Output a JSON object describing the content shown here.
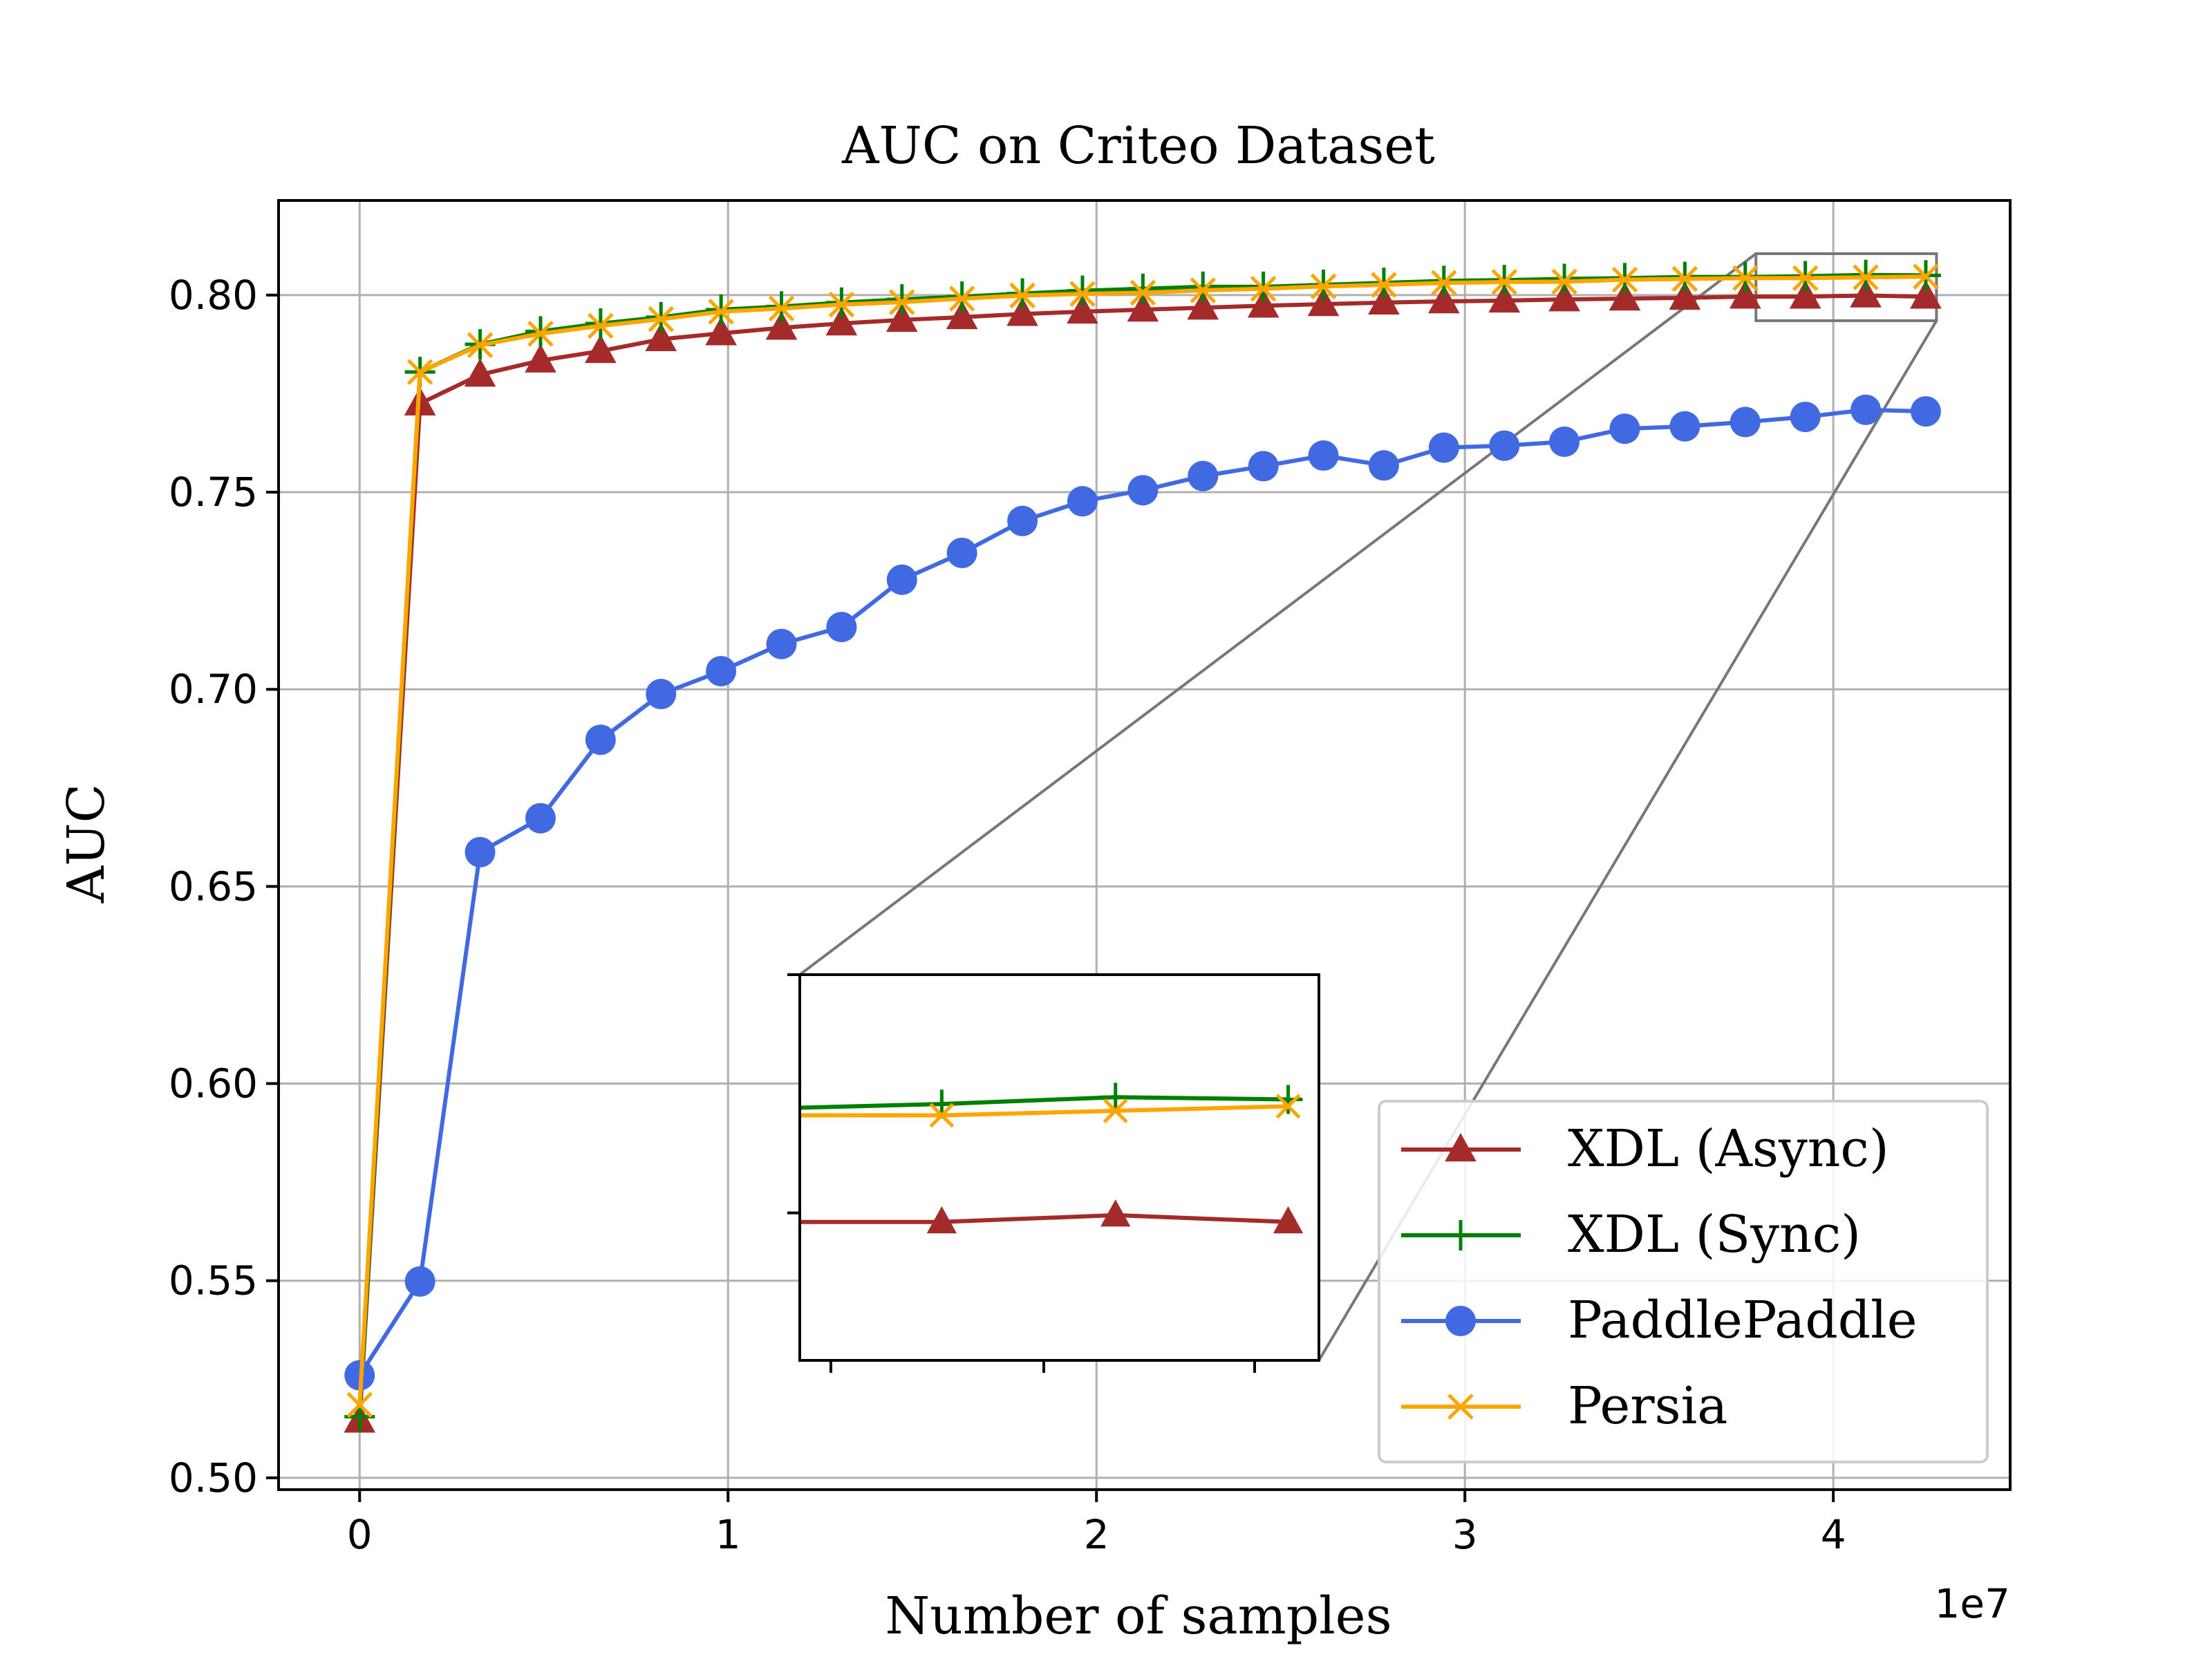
{
  "chart_data": {
    "type": "line",
    "title": "AUC on Criteo Dataset",
    "xlabel": "Number of samples",
    "ylabel": "AUC",
    "x_offset_label": "1e7",
    "xlim": [
      -0.22,
      4.48
    ],
    "ylim": [
      0.497,
      0.824
    ],
    "x_ticks": [
      0,
      1,
      2,
      3,
      4
    ],
    "x_tick_labels": [
      "0",
      "1",
      "2",
      "3",
      "4"
    ],
    "y_ticks": [
      0.5,
      0.55,
      0.6,
      0.65,
      0.7,
      0.75,
      0.8
    ],
    "y_tick_labels": [
      "0.50",
      "0.55",
      "0.60",
      "0.65",
      "0.70",
      "0.75",
      "0.80"
    ],
    "grid": true,
    "legend_position": "lower-right",
    "x": [
      0,
      0.164,
      0.327,
      0.491,
      0.654,
      0.818,
      0.981,
      1.145,
      1.308,
      1.472,
      1.635,
      1.799,
      1.962,
      2.126,
      2.289,
      2.453,
      2.616,
      2.78,
      2.943,
      3.107,
      3.27,
      3.434,
      3.597,
      3.761,
      3.924,
      4.088,
      4.251
    ],
    "series": [
      {
        "name": "XDL (Async)",
        "color": "#a52a2a",
        "marker": "triangle",
        "values": [
          0.5145,
          0.7725,
          0.7798,
          0.7834,
          0.7858,
          0.7888,
          0.7903,
          0.7917,
          0.7928,
          0.7937,
          0.7944,
          0.7952,
          0.7958,
          0.7963,
          0.7968,
          0.7973,
          0.7977,
          0.7981,
          0.7984,
          0.7986,
          0.7989,
          0.7991,
          0.7993,
          0.7996,
          0.7996,
          0.7999,
          0.7996
        ]
      },
      {
        "name": "XDL (Sync)",
        "color": "#008000",
        "marker": "plus",
        "values": [
          0.5155,
          0.7805,
          0.7875,
          0.7908,
          0.7928,
          0.7944,
          0.7963,
          0.7971,
          0.7981,
          0.7989,
          0.7996,
          0.8004,
          0.8011,
          0.8016,
          0.8021,
          0.8021,
          0.8026,
          0.8031,
          0.8036,
          0.8038,
          0.8041,
          0.8043,
          0.8046,
          0.8046,
          0.8048,
          0.8051,
          0.805
        ]
      },
      {
        "name": "PaddlePaddle",
        "color": "#4169e1",
        "marker": "circle",
        "values": [
          0.526,
          0.5498,
          0.6587,
          0.6673,
          0.6872,
          0.6988,
          0.7046,
          0.7115,
          0.7158,
          0.7278,
          0.7346,
          0.7427,
          0.7477,
          0.7505,
          0.7541,
          0.7566,
          0.7593,
          0.7568,
          0.7613,
          0.7618,
          0.7628,
          0.7661,
          0.7667,
          0.7678,
          0.7691,
          0.7709,
          0.7705
        ]
      },
      {
        "name": "Persia",
        "color": "#ffa500",
        "marker": "x",
        "values": [
          0.5185,
          0.7805,
          0.7873,
          0.7902,
          0.7922,
          0.7939,
          0.7958,
          0.7966,
          0.7976,
          0.7982,
          0.7991,
          0.7999,
          0.8003,
          0.8006,
          0.8012,
          0.8016,
          0.8022,
          0.8026,
          0.8031,
          0.8033,
          0.8034,
          0.8039,
          0.8041,
          0.8043,
          0.8043,
          0.8045,
          0.8047
        ]
      }
    ],
    "inset": {
      "xlim": [
        3.79,
        4.28
      ],
      "ylim": [
        0.7935,
        0.8105
      ],
      "shows_last_points": 4
    }
  }
}
